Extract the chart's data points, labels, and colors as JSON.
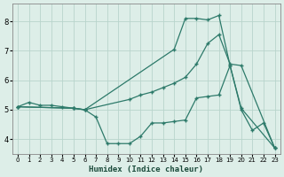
{
  "xlabel": "Humidex (Indice chaleur)",
  "background_color": "#ddeee8",
  "grid_color": "#b8d4cc",
  "line_color": "#2d7a6a",
  "xlim": [
    -0.5,
    23.5
  ],
  "ylim": [
    3.5,
    8.6
  ],
  "yticks": [
    4,
    5,
    6,
    7,
    8
  ],
  "xticks": [
    0,
    1,
    2,
    3,
    4,
    5,
    6,
    7,
    8,
    9,
    10,
    11,
    12,
    13,
    14,
    15,
    16,
    17,
    18,
    19,
    20,
    21,
    22,
    23
  ],
  "line1_x": [
    0,
    1,
    2,
    3,
    4,
    5,
    6,
    7,
    8,
    9,
    10,
    11,
    12,
    13,
    14,
    15,
    16,
    17,
    18,
    19,
    20,
    21,
    22,
    23
  ],
  "line1_y": [
    5.1,
    5.25,
    5.15,
    5.15,
    5.1,
    5.05,
    5.0,
    4.75,
    3.85,
    3.85,
    3.85,
    4.1,
    4.55,
    4.55,
    4.6,
    4.65,
    5.4,
    5.45,
    5.5,
    6.5,
    5.0,
    4.3,
    4.55,
    3.7
  ],
  "line2_x": [
    0,
    5,
    6,
    10,
    11,
    12,
    13,
    14,
    15,
    16,
    17,
    18,
    19,
    20,
    23
  ],
  "line2_y": [
    5.1,
    5.05,
    5.0,
    5.35,
    5.5,
    5.6,
    5.75,
    5.9,
    6.1,
    6.55,
    7.25,
    7.55,
    6.55,
    6.5,
    3.7
  ],
  "line3_x": [
    0,
    5,
    6,
    14,
    15,
    16,
    17,
    18,
    19,
    20,
    23
  ],
  "line3_y": [
    5.1,
    5.05,
    5.0,
    7.05,
    8.1,
    8.1,
    8.05,
    8.2,
    6.5,
    5.05,
    3.7
  ]
}
